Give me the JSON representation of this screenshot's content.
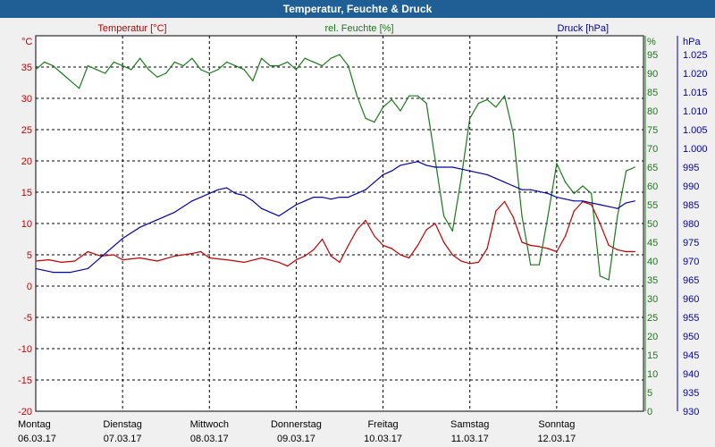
{
  "window": {
    "title": "Temperatur, Feuchte & Druck"
  },
  "colors": {
    "temperature": "#c00000",
    "humidity": "#1a7a1a",
    "pressure": "#0000aa",
    "grid": "#000000",
    "plot_bg": "#ffffff",
    "titlebar": "#1f5f95"
  },
  "chart_data": {
    "type": "line",
    "title": "Temperatur, Feuchte & Druck",
    "grid": true,
    "x_labels": [
      {
        "day": "Montag",
        "date": "06.03.17"
      },
      {
        "day": "Dienstag",
        "date": "07.03.17"
      },
      {
        "day": "Mittwoch",
        "date": "08.03.17"
      },
      {
        "day": "Donnerstag",
        "date": "09.03.17"
      },
      {
        "day": "Freitag",
        "date": "10.03.17"
      },
      {
        "day": "Samstag",
        "date": "11.03.17"
      },
      {
        "day": "Sonntag",
        "date": "12.03.17"
      }
    ],
    "x_range_days": [
      0,
      7
    ],
    "axes": {
      "temperature": {
        "label": "Temperatur [°C]",
        "unit": "°C",
        "min": -20,
        "max": 40,
        "ticks": [
          "35",
          "30",
          "25",
          "20",
          "15",
          "10",
          "5",
          "0",
          "-5",
          "-10",
          "-15",
          "-20"
        ]
      },
      "humidity": {
        "label": "rel. Feuchte [%]",
        "unit": "%",
        "min": 0,
        "max": 100,
        "ticks": [
          "95",
          "90",
          "85",
          "80",
          "75",
          "70",
          "65",
          "60",
          "55",
          "50",
          "45",
          "40",
          "35",
          "30",
          "25",
          "20",
          "15",
          "10",
          "5",
          "0"
        ]
      },
      "pressure": {
        "label": "Druck [hPa]",
        "unit": "hPa",
        "min": 930,
        "max": 1030,
        "ticks": [
          "1.025",
          "1.020",
          "1.015",
          "1.010",
          "1.005",
          "1.000",
          "995",
          "990",
          "985",
          "980",
          "975",
          "970",
          "965",
          "960",
          "955",
          "950",
          "945",
          "940",
          "935",
          "930"
        ]
      }
    },
    "series": [
      {
        "name": "Temperatur [°C]",
        "axis": "temperature",
        "x": [
          0,
          0.15,
          0.3,
          0.45,
          0.6,
          0.75,
          0.9,
          1.0,
          1.2,
          1.4,
          1.6,
          1.8,
          1.9,
          2.0,
          2.2,
          2.4,
          2.6,
          2.8,
          2.9,
          3.0,
          3.1,
          3.2,
          3.3,
          3.4,
          3.5,
          3.6,
          3.7,
          3.8,
          3.9,
          4.0,
          4.1,
          4.2,
          4.3,
          4.4,
          4.5,
          4.6,
          4.7,
          4.8,
          4.9,
          5.0,
          5.1,
          5.2,
          5.3,
          5.4,
          5.5,
          5.6,
          5.7,
          5.8,
          5.9,
          6.0,
          6.1,
          6.2,
          6.3,
          6.4,
          6.5,
          6.6,
          6.7,
          6.8,
          6.9
        ],
        "values": [
          4,
          4.2,
          3.8,
          4,
          5.5,
          4.8,
          5,
          4.2,
          4.5,
          4,
          4.8,
          5.2,
          5.5,
          4.5,
          4.2,
          3.8,
          4.5,
          3.8,
          3.2,
          4.2,
          4.8,
          5.8,
          7.5,
          4.8,
          3.8,
          6.5,
          9,
          10.5,
          8,
          6.5,
          6,
          5,
          4.5,
          6.5,
          9,
          10,
          7,
          5,
          4,
          3.6,
          3.8,
          6,
          12,
          13.5,
          11,
          7,
          6.5,
          6.3,
          6,
          5.5,
          8,
          12,
          13.5,
          13,
          10,
          6.5,
          5.8,
          5.5,
          5.5
        ]
      },
      {
        "name": "rel. Feuchte [%]",
        "axis": "humidity",
        "x": [
          0,
          0.1,
          0.2,
          0.3,
          0.4,
          0.5,
          0.6,
          0.7,
          0.8,
          0.9,
          1.0,
          1.1,
          1.2,
          1.3,
          1.4,
          1.5,
          1.6,
          1.7,
          1.8,
          1.9,
          2.0,
          2.1,
          2.2,
          2.3,
          2.4,
          2.5,
          2.6,
          2.7,
          2.8,
          2.9,
          3.0,
          3.1,
          3.2,
          3.3,
          3.4,
          3.5,
          3.6,
          3.7,
          3.8,
          3.9,
          4.0,
          4.1,
          4.2,
          4.3,
          4.4,
          4.5,
          4.6,
          4.7,
          4.8,
          4.9,
          5.0,
          5.1,
          5.2,
          5.3,
          5.4,
          5.5,
          5.6,
          5.7,
          5.8,
          5.9,
          6.0,
          6.1,
          6.2,
          6.3,
          6.4,
          6.5,
          6.6,
          6.7,
          6.8,
          6.9
        ],
        "values": [
          91,
          93,
          92,
          90,
          88,
          86,
          92,
          91,
          90,
          93,
          92,
          91,
          94,
          91,
          89,
          90,
          93,
          92,
          94,
          91,
          90,
          91,
          93,
          92,
          91,
          88,
          94,
          92,
          92,
          93,
          91,
          94,
          93,
          92,
          94,
          95,
          92,
          84,
          78,
          77,
          81,
          83,
          80,
          84,
          84,
          82,
          67,
          52,
          48,
          62,
          78,
          82,
          83,
          81,
          84,
          74,
          52,
          39,
          39,
          52,
          66,
          61,
          58,
          60,
          58,
          36,
          35,
          52,
          64,
          65
        ]
      },
      {
        "name": "Druck [hPa]",
        "axis": "pressure",
        "x": [
          0,
          0.2,
          0.4,
          0.6,
          0.8,
          1.0,
          1.2,
          1.4,
          1.6,
          1.8,
          2.0,
          2.1,
          2.2,
          2.3,
          2.4,
          2.5,
          2.6,
          2.8,
          3.0,
          3.1,
          3.2,
          3.3,
          3.4,
          3.5,
          3.6,
          3.7,
          3.8,
          3.9,
          4.0,
          4.1,
          4.2,
          4.3,
          4.4,
          4.5,
          4.6,
          4.7,
          4.8,
          4.9,
          5.0,
          5.1,
          5.2,
          5.3,
          5.4,
          5.5,
          5.6,
          5.7,
          5.8,
          5.9,
          6.0,
          6.1,
          6.2,
          6.3,
          6.4,
          6.5,
          6.6,
          6.7,
          6.8,
          6.9
        ],
        "values": [
          968,
          967,
          967,
          968,
          972,
          976,
          979,
          981,
          983,
          986,
          988,
          989,
          989.5,
          988,
          987.5,
          986,
          984,
          982,
          985,
          986,
          987,
          987,
          986.5,
          987,
          987,
          988,
          989,
          991,
          993,
          994,
          995.5,
          996,
          996.5,
          995.5,
          995,
          995,
          995,
          994.5,
          994,
          993.5,
          993,
          992,
          991,
          990,
          989,
          989,
          988.5,
          988,
          987,
          986.5,
          986,
          986,
          985.5,
          985,
          984.5,
          984,
          985.5,
          986
        ]
      }
    ]
  }
}
